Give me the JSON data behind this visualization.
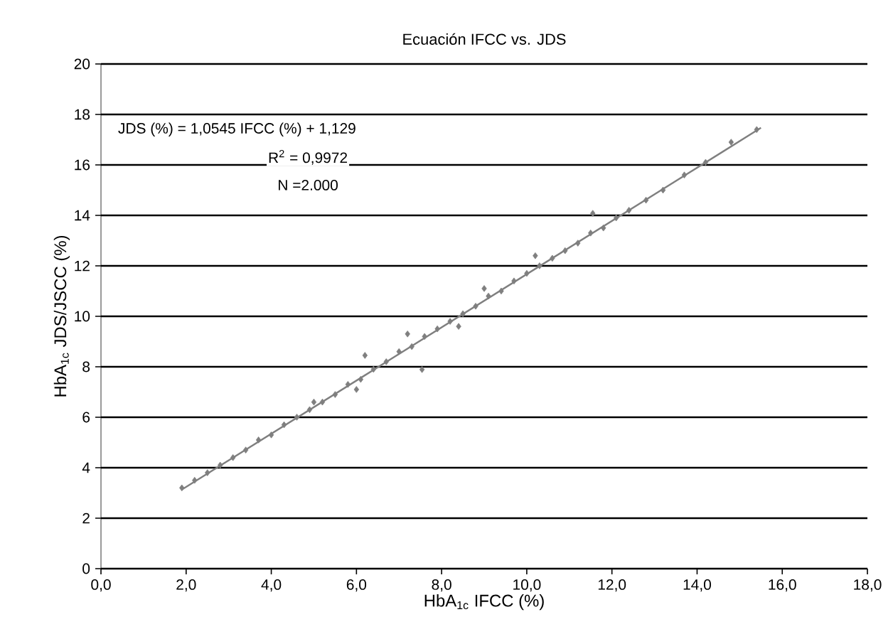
{
  "chart_data": {
    "type": "scatter",
    "title": "Ecuación IFCC vs. JDS",
    "xlabel": "HbA$_{1c}$ IFCC (%)",
    "ylabel": "HbA$_{1c}$ JDS/JSCC (%)",
    "xlim": [
      0,
      18
    ],
    "ylim": [
      0,
      20
    ],
    "xticks": [
      {
        "value": 0,
        "label": "0,0"
      },
      {
        "value": 2,
        "label": "2,0"
      },
      {
        "value": 4,
        "label": "4,0"
      },
      {
        "value": 6,
        "label": "6,0"
      },
      {
        "value": 8,
        "label": "8,0"
      },
      {
        "value": 10,
        "label": "10,0"
      },
      {
        "value": 12,
        "label": "12,0"
      },
      {
        "value": 14,
        "label": "14,0"
      },
      {
        "value": 16,
        "label": "16,0"
      },
      {
        "value": 18,
        "label": "18,0"
      }
    ],
    "yticks": [
      0,
      2,
      4,
      6,
      8,
      10,
      12,
      14,
      16,
      18,
      20
    ],
    "grid": "y",
    "marker": "diamond",
    "annotations": [
      "JDS (%) = 1,0545 IFCC (%) + 1,129",
      "R$^{2}$ = 0,9972",
      "N =2.000"
    ],
    "series": [
      {
        "color": "#7f7f7f",
        "x": [
          1.9,
          2.2,
          2.5,
          2.8,
          3.1,
          3.4,
          3.7,
          4.0,
          4.3,
          4.6,
          4.9,
          5.0,
          5.2,
          5.5,
          5.8,
          6.0,
          6.1,
          6.2,
          6.4,
          6.7,
          7.0,
          7.2,
          7.3,
          7.54,
          7.6,
          7.9,
          8.2,
          8.4,
          8.5,
          8.8,
          9.0,
          9.1,
          9.4,
          9.7,
          10.0,
          10.2,
          10.3,
          10.6,
          10.9,
          11.2,
          11.5,
          11.55,
          11.8,
          12.1,
          12.4,
          12.8,
          13.2,
          13.7,
          14.2,
          14.8,
          15.4
        ],
        "values": [
          3.2,
          3.5,
          3.8,
          4.1,
          4.4,
          4.7,
          5.1,
          5.3,
          5.7,
          6.0,
          6.3,
          6.6,
          6.6,
          6.9,
          7.3,
          7.1,
          7.5,
          8.45,
          7.9,
          8.2,
          8.6,
          9.3,
          8.8,
          7.89,
          9.2,
          9.5,
          9.8,
          9.6,
          10.1,
          10.4,
          11.1,
          10.8,
          11.0,
          11.4,
          11.7,
          12.4,
          12.0,
          12.3,
          12.6,
          12.9,
          13.3,
          14.08,
          13.5,
          13.9,
          14.2,
          14.6,
          15.0,
          15.6,
          16.1,
          16.9,
          17.4
        ]
      },
      {
        "type": "line",
        "marker": "none",
        "color": "#7f7f7f",
        "x": [
          1.9,
          15.5
        ],
        "values": [
          3.13,
          17.47
        ]
      }
    ]
  }
}
